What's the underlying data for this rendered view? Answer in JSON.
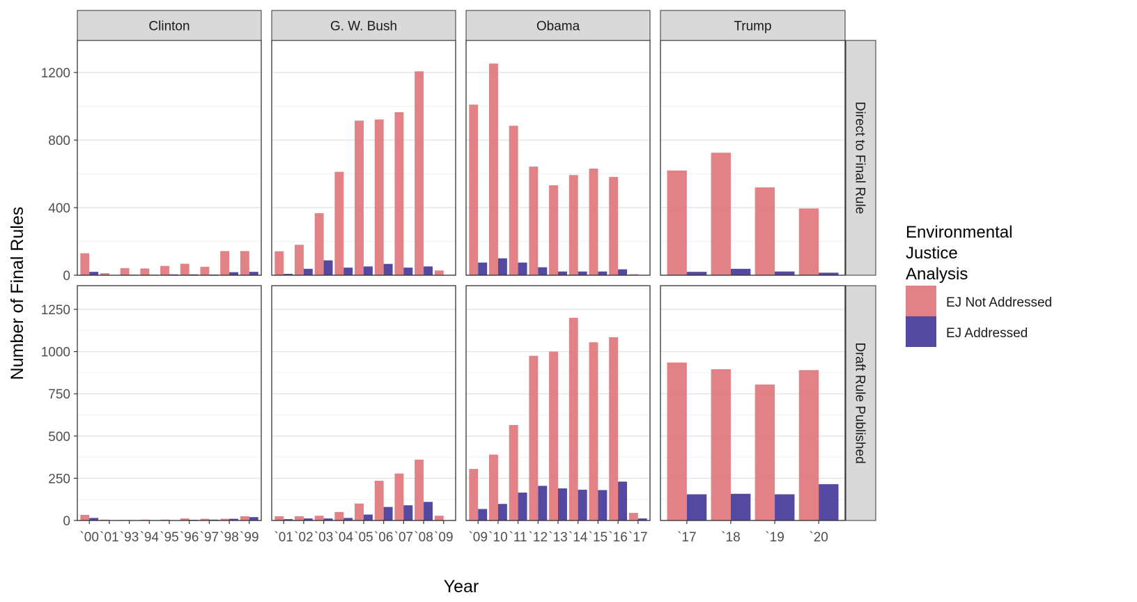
{
  "chart_data": {
    "type": "bar",
    "xlabel": "Year",
    "ylabel": "Number of Final Rules",
    "legend": {
      "title": [
        "Environmental",
        "Justice",
        "Analysis"
      ],
      "placement": "right",
      "entries": [
        {
          "name": "EJ Not Addressed",
          "color": "#E07A7F"
        },
        {
          "name": "EJ Addressed",
          "color": "#4B3F9B"
        }
      ]
    },
    "grid": true,
    "columns": [
      "Clinton",
      "G. W. Bush",
      "Obama",
      "Trump"
    ],
    "rows": [
      {
        "label": "Direct to Final Rule",
        "ylim": [
          0,
          1390
        ],
        "ticks": [
          0,
          400,
          800,
          1200
        ],
        "tick_labels": [
          "0",
          "400",
          "800",
          "1200"
        ]
      },
      {
        "label": "Draft Rule Published",
        "ylim": [
          0,
          1390
        ],
        "ticks": [
          0,
          250,
          500,
          750,
          1000,
          1250
        ],
        "tick_labels": [
          "0",
          "250",
          "500",
          "750",
          "1000",
          "1250"
        ]
      }
    ],
    "panels": [
      {
        "column": "Clinton",
        "categories": [
          "`00",
          "`01",
          "`93",
          "`94",
          "`95",
          "`96",
          "`97",
          "`98",
          "`99"
        ],
        "tick_labels": [
          "`00",
          "`01",
          "`93",
          "`94",
          "`95",
          "`96",
          "`97",
          "`98",
          "`99"
        ],
        "direct": {
          "not_addressed": [
            130,
            12,
            42,
            40,
            55,
            68,
            50,
            143,
            143
          ],
          "addressed": [
            20,
            2,
            3,
            3,
            5,
            5,
            4,
            18,
            20
          ]
        },
        "draft": {
          "not_addressed": [
            33,
            5,
            3,
            5,
            5,
            12,
            10,
            10,
            25
          ],
          "addressed": [
            15,
            2,
            1,
            2,
            2,
            4,
            5,
            10,
            20
          ]
        }
      },
      {
        "column": "G. W. Bush",
        "categories": [
          "`01",
          "`02",
          "`03",
          "`04",
          "`05",
          "`06",
          "`07",
          "`08",
          "`09"
        ],
        "tick_labels": [
          "`01",
          "`02",
          "`03",
          "`04",
          "`05",
          "`06",
          "`07",
          "`08",
          "`09"
        ],
        "direct": {
          "not_addressed": [
            142,
            180,
            367,
            612,
            915,
            922,
            965,
            1207,
            28
          ],
          "addressed": [
            8,
            38,
            88,
            45,
            52,
            67,
            45,
            52,
            2
          ]
        },
        "draft": {
          "not_addressed": [
            25,
            25,
            28,
            50,
            100,
            235,
            278,
            360,
            28
          ],
          "addressed": [
            8,
            12,
            12,
            15,
            35,
            80,
            90,
            110,
            2
          ]
        }
      },
      {
        "column": "Obama",
        "categories": [
          "`09",
          "`10",
          "`11",
          "`12",
          "`13",
          "`14",
          "`15",
          "`16",
          "`17"
        ],
        "tick_labels": [
          "`09",
          "`10",
          "`11",
          "`12",
          "`13",
          "`14",
          "`15",
          "`16",
          "`17"
        ],
        "direct": {
          "not_addressed": [
            1010,
            1253,
            885,
            643,
            532,
            593,
            631,
            582,
            6
          ],
          "addressed": [
            75,
            100,
            75,
            47,
            22,
            22,
            22,
            35,
            2
          ]
        },
        "draft": {
          "not_addressed": [
            305,
            390,
            565,
            975,
            1000,
            1200,
            1055,
            1085,
            45
          ],
          "addressed": [
            68,
            98,
            165,
            205,
            190,
            182,
            180,
            230,
            12
          ]
        }
      },
      {
        "column": "Trump",
        "categories": [
          "`17",
          "`18",
          "`19",
          "`20"
        ],
        "tick_labels": [
          "`17",
          "`18",
          "`19",
          "`20"
        ],
        "direct": {
          "not_addressed": [
            620,
            725,
            520,
            395
          ],
          "addressed": [
            20,
            38,
            22,
            15
          ]
        },
        "draft": {
          "not_addressed": [
            935,
            895,
            805,
            890
          ],
          "addressed": [
            155,
            158,
            155,
            215
          ]
        }
      }
    ]
  }
}
